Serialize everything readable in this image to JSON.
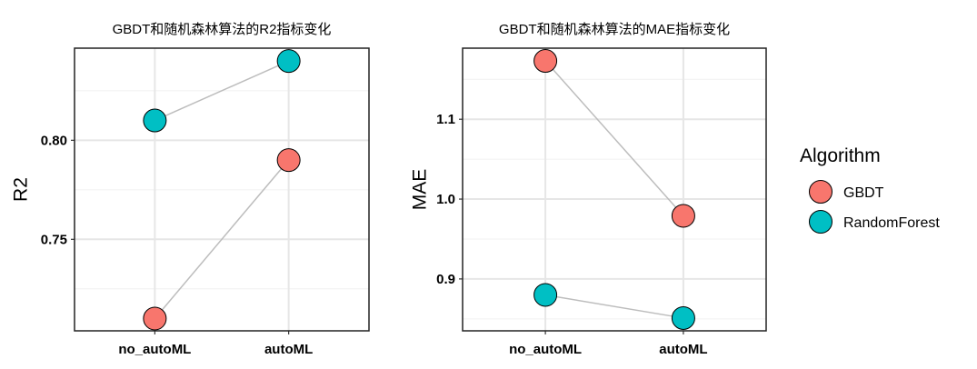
{
  "chart_data": [
    {
      "type": "line",
      "title": "GBDT和随机森林算法的R2指标变化",
      "xlabel": "",
      "ylabel": "R2",
      "categories": [
        "no_autoML",
        "autoML"
      ],
      "yticks": [
        0.75,
        0.8
      ],
      "ytick_labels": [
        "0.75",
        "0.80"
      ],
      "ylim": [
        0.7038,
        0.8465
      ],
      "grid": true,
      "series": [
        {
          "name": "GBDT",
          "values": [
            0.71,
            0.79
          ]
        },
        {
          "name": "RandomForest",
          "values": [
            0.81,
            0.84
          ]
        }
      ]
    },
    {
      "type": "line",
      "title": "GBDT和随机森林算法的MAE指标变化",
      "xlabel": "",
      "ylabel": "MAE",
      "categories": [
        "no_autoML",
        "autoML"
      ],
      "yticks": [
        0.9,
        1.0,
        1.1
      ],
      "ytick_labels": [
        "0.9",
        "1.0",
        "1.1"
      ],
      "ylim": [
        0.835,
        1.189
      ],
      "grid": true,
      "series": [
        {
          "name": "GBDT",
          "values": [
            1.173,
            0.979
          ]
        },
        {
          "name": "RandomForest",
          "values": [
            0.88,
            0.851
          ]
        }
      ]
    }
  ],
  "legend": {
    "title": "Algorithm",
    "placement": "right",
    "items": [
      {
        "label": "GBDT",
        "color": "#F8766D"
      },
      {
        "label": "RandomForest",
        "color": "#00BFC4"
      }
    ]
  }
}
